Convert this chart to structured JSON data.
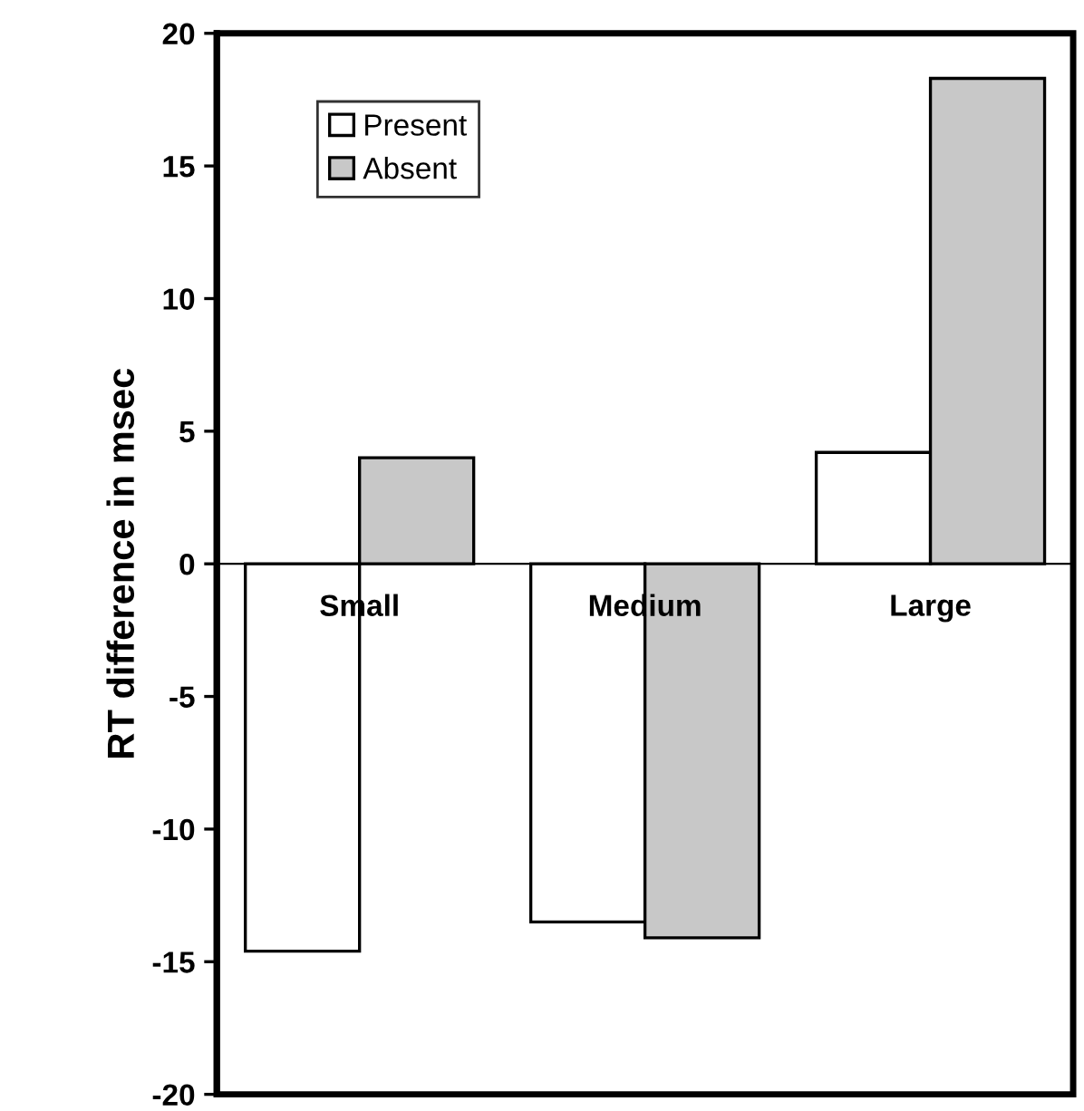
{
  "chart_data": {
    "type": "bar",
    "ylabel": "RT difference in msec",
    "categories": [
      "Small",
      "Medium",
      "Large"
    ],
    "series": [
      {
        "name": "Present",
        "color": "#ffffff",
        "values": [
          -14.6,
          -13.5,
          4.2
        ]
      },
      {
        "name": "Absent",
        "color": "#c8c8c8",
        "values": [
          4.0,
          -14.1,
          18.3
        ]
      }
    ],
    "ylim": [
      -20,
      20
    ],
    "yticks": [
      -20,
      -15,
      -10,
      -5,
      0,
      5,
      10,
      15,
      20
    ],
    "grid": false,
    "legend": "top left"
  }
}
